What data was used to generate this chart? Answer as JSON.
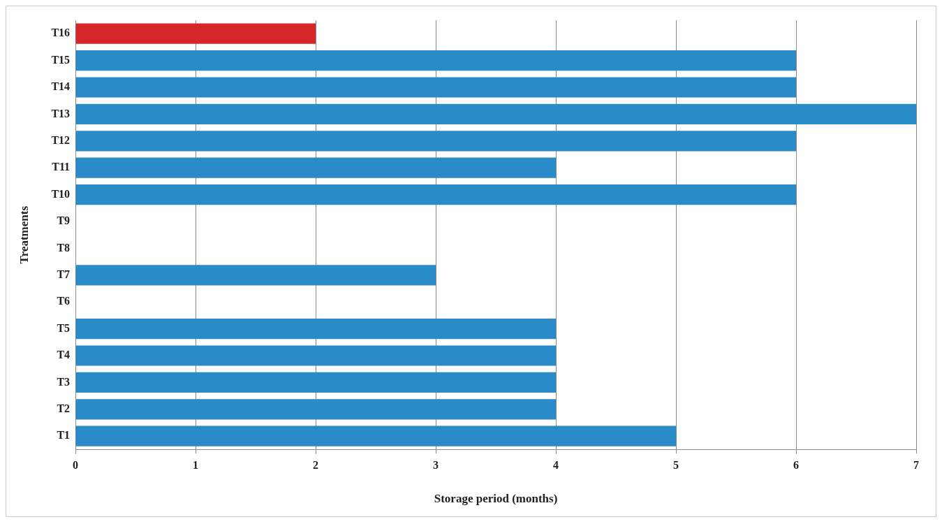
{
  "chart_data": {
    "type": "bar",
    "orientation": "horizontal",
    "xlabel": "Storage period (months)",
    "ylabel": "Treatments",
    "categories": [
      "T16",
      "T15",
      "T14",
      "T13",
      "T12",
      "T11",
      "T10",
      "T9",
      "T8",
      "T7",
      "T6",
      "T5",
      "T4",
      "T3",
      "T2",
      "T1"
    ],
    "values": [
      2,
      6,
      6,
      7,
      6,
      4,
      6,
      0,
      0,
      3,
      0,
      4,
      4,
      4,
      4,
      5
    ],
    "colors": [
      "#d62728",
      "#2a8bc8",
      "#2a8bc8",
      "#2a8bc8",
      "#2a8bc8",
      "#2a8bc8",
      "#2a8bc8",
      "#2a8bc8",
      "#2a8bc8",
      "#2a8bc8",
      "#2a8bc8",
      "#2a8bc8",
      "#2a8bc8",
      "#2a8bc8",
      "#2a8bc8",
      "#2a8bc8"
    ],
    "xlim": [
      0,
      7
    ],
    "xticks": [
      0,
      1,
      2,
      3,
      4,
      5,
      6,
      7
    ],
    "grid": "x"
  }
}
